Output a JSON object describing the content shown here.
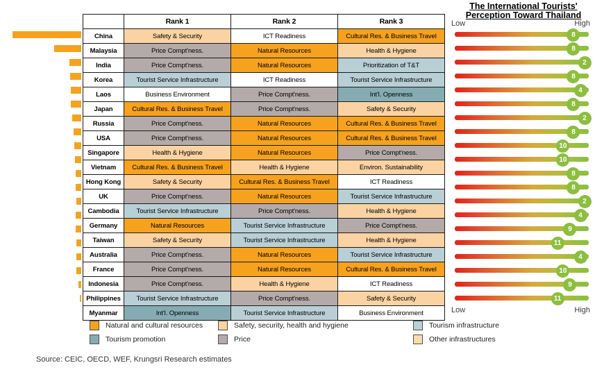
{
  "right_chart": {
    "title_line1": "The International Tourists'",
    "title_line2": "Perception Toward Thailand",
    "low_label": "Low",
    "high_label": "High"
  },
  "table": {
    "headers": [
      "Rank 1",
      "Rank 2",
      "Rank 3"
    ],
    "rows": [
      {
        "country": "China",
        "cells": [
          {
            "label": "Safety & Security",
            "cat": "safety"
          },
          {
            "label": "ICT Readiness",
            "cat": "none"
          },
          {
            "label": "Cultural Res. & Business Travel",
            "cat": "natural"
          }
        ],
        "bar_len": 99,
        "score": 8
      },
      {
        "country": "Malaysia",
        "cells": [
          {
            "label": "Price Compt'ness.",
            "cat": "price"
          },
          {
            "label": "Natural Resources",
            "cat": "natural"
          },
          {
            "label": "Health & Hygiene",
            "cat": "safety"
          }
        ],
        "bar_len": 39,
        "score": 8
      },
      {
        "country": "India",
        "cells": [
          {
            "label": "Price Compt'ness.",
            "cat": "price"
          },
          {
            "label": "Natural Resources",
            "cat": "natural"
          },
          {
            "label": "Prioritization of T&T",
            "cat": "infrastructure"
          }
        ],
        "bar_len": 17,
        "score": 2
      },
      {
        "country": "Korea",
        "cells": [
          {
            "label": "Tourist Service Infrastructure",
            "cat": "infrastructure"
          },
          {
            "label": "ICT Readiness",
            "cat": "none"
          },
          {
            "label": "Tourist Service Infrastructure",
            "cat": "infrastructure"
          }
        ],
        "bar_len": 16,
        "score": 8
      },
      {
        "country": "Laos",
        "cells": [
          {
            "label": "Business Environment",
            "cat": "none"
          },
          {
            "label": "Price Compt'ness.",
            "cat": "price"
          },
          {
            "label": "Int'l. Openness",
            "cat": "promotion"
          }
        ],
        "bar_len": 15,
        "score": 4
      },
      {
        "country": "Japan",
        "cells": [
          {
            "label": "Cultural Res. & Business Travel",
            "cat": "natural"
          },
          {
            "label": "Price Compt'ness.",
            "cat": "price"
          },
          {
            "label": "Safety & Security",
            "cat": "safety"
          }
        ],
        "bar_len": 15,
        "score": 8
      },
      {
        "country": "Russia",
        "cells": [
          {
            "label": "Price Compt'ness.",
            "cat": "price"
          },
          {
            "label": "Natural Resources",
            "cat": "natural"
          },
          {
            "label": "Cultural Res. & Business Travel",
            "cat": "natural"
          }
        ],
        "bar_len": 13,
        "score": 2
      },
      {
        "country": "USA",
        "cells": [
          {
            "label": "Price Compt'ness.",
            "cat": "price"
          },
          {
            "label": "Natural Resources",
            "cat": "natural"
          },
          {
            "label": "Cultural Res. & Business Travel",
            "cat": "natural"
          }
        ],
        "bar_len": 11,
        "score": 8
      },
      {
        "country": "Singapore",
        "cells": [
          {
            "label": "Health & Hygiene",
            "cat": "safety"
          },
          {
            "label": "Natural Resources",
            "cat": "natural"
          },
          {
            "label": "Price Compt'ness.",
            "cat": "price"
          }
        ],
        "bar_len": 10,
        "score": 10
      },
      {
        "country": "Vietnam",
        "cells": [
          {
            "label": "Cultural Res. & Business Travel",
            "cat": "natural"
          },
          {
            "label": "Health & Hygiene",
            "cat": "safety"
          },
          {
            "label": "Environ. Sustainability",
            "cat": "safety"
          }
        ],
        "bar_len": 9,
        "score": 10
      },
      {
        "country": "Hong Kong",
        "cells": [
          {
            "label": "Safety & Security",
            "cat": "safety"
          },
          {
            "label": "Cultural Res. & Business Travel",
            "cat": "natural"
          },
          {
            "label": "ICT Readiness",
            "cat": "none"
          }
        ],
        "bar_len": 8,
        "score": 8
      },
      {
        "country": "UK",
        "cells": [
          {
            "label": "Price Compt'ness.",
            "cat": "price"
          },
          {
            "label": "Natural Resources",
            "cat": "natural"
          },
          {
            "label": "Tourist Service Infrastructure",
            "cat": "infrastructure"
          }
        ],
        "bar_len": 8,
        "score": 8
      },
      {
        "country": "Cambodia",
        "cells": [
          {
            "label": "Tourist Service Infrastructure",
            "cat": "infrastructure"
          },
          {
            "label": "Price Compt'ness.",
            "cat": "price"
          },
          {
            "label": "Health & Hygiene",
            "cat": "safety"
          }
        ],
        "bar_len": 7,
        "score": 2
      },
      {
        "country": "Germany",
        "cells": [
          {
            "label": "Natural Resources",
            "cat": "natural"
          },
          {
            "label": "Tourist Service Infrastructure",
            "cat": "infrastructure"
          },
          {
            "label": "Price Compt'ness.",
            "cat": "price"
          }
        ],
        "bar_len": 8,
        "score": 4
      },
      {
        "country": "Taiwan",
        "cells": [
          {
            "label": "Safety & Security",
            "cat": "safety"
          },
          {
            "label": "Tourist Service Infrastructure",
            "cat": "infrastructure"
          },
          {
            "label": "Health & Hygiene",
            "cat": "safety"
          }
        ],
        "bar_len": 8,
        "score": 9
      },
      {
        "country": "Australia",
        "cells": [
          {
            "label": "Price Compt'ness.",
            "cat": "price"
          },
          {
            "label": "Natural Resources",
            "cat": "natural"
          },
          {
            "label": "Tourist Service Infrastructure",
            "cat": "infrastructure"
          }
        ],
        "bar_len": 7,
        "score": 11
      },
      {
        "country": "France",
        "cells": [
          {
            "label": "Price Compt'ness.",
            "cat": "price"
          },
          {
            "label": "Natural Resources",
            "cat": "natural"
          },
          {
            "label": "Cultural Res. & Business Travel",
            "cat": "natural"
          }
        ],
        "bar_len": 7,
        "score": 4
      },
      {
        "country": "Indonesia",
        "cells": [
          {
            "label": "Price Compt'ness.",
            "cat": "price"
          },
          {
            "label": "Health & Hygiene",
            "cat": "safety"
          },
          {
            "label": "ICT Readiness",
            "cat": "none"
          }
        ],
        "bar_len": 7,
        "score": 10
      },
      {
        "country": "Philippines",
        "cells": [
          {
            "label": "Tourist Service Infrastructure",
            "cat": "infrastructure"
          },
          {
            "label": "Price Compt'ness.",
            "cat": "price"
          },
          {
            "label": "Safety & Security",
            "cat": "safety"
          }
        ],
        "bar_len": 4,
        "score": 9
      },
      {
        "country": "Myanmar",
        "cells": [
          {
            "label": "Int'l. Openness",
            "cat": "promotion"
          },
          {
            "label": "Tourist Service Infrastructure",
            "cat": "infrastructure"
          },
          {
            "label": "Business Environment",
            "cat": "none"
          }
        ],
        "bar_len": 2,
        "score": 11
      }
    ]
  },
  "score_positions": {
    "2": 0.969,
    "4": 0.938,
    "8": 0.886,
    "9": 0.86,
    "10": 0.808,
    "11": 0.767
  },
  "colors": {
    "natural": "#F6A21E",
    "safety": "#FBD3A2",
    "price": "#B4AAAA",
    "infrastructure": "#B9CFD6",
    "promotion": "#85ACB3",
    "other": "#F8DCAE",
    "none": "#FFFFFF",
    "left_bar": "#F6A21E",
    "circle": "#8CBE3F",
    "gradient_start": "#E2231A",
    "gradient_mid": "#D6A93C",
    "gradient_end": "#8CBE3F"
  },
  "legend": [
    {
      "label": "Natural and cultural resources",
      "cat": "natural"
    },
    {
      "label": "Safety, security, health and hygiene",
      "cat": "safety"
    },
    {
      "label": "Tourism infrastructure",
      "cat": "infrastructure"
    },
    {
      "label": "Tourism promotion",
      "cat": "promotion"
    },
    {
      "label": "Price",
      "cat": "price"
    },
    {
      "label": "Other infrastructures",
      "cat": "other"
    }
  ],
  "source": "Source: CEIC, OECD, WEF, Krungsri Research estimates",
  "chart_data": [
    {
      "type": "bar",
      "orientation": "horizontal",
      "title": "",
      "categories": [
        "China",
        "Malaysia",
        "India",
        "Korea",
        "Laos",
        "Japan",
        "Russia",
        "USA",
        "Singapore",
        "Vietnam",
        "Hong Kong",
        "UK",
        "Cambodia",
        "Germany",
        "Taiwan",
        "Australia",
        "France",
        "Indonesia",
        "Philippines",
        "Myanmar"
      ],
      "values": [
        99,
        39,
        17,
        16,
        15,
        15,
        13,
        11,
        10,
        9,
        8,
        8,
        7,
        8,
        8,
        7,
        7,
        7,
        4,
        2
      ],
      "value_unit": "relative_bar_length_px",
      "bar_color": "#F6A21E",
      "legend_position": "none"
    },
    {
      "type": "scatter",
      "title": "The International Tourists' Perception Toward Thailand",
      "categories": [
        "China",
        "Malaysia",
        "India",
        "Korea",
        "Laos",
        "Japan",
        "Russia",
        "USA",
        "Singapore",
        "Vietnam",
        "Hong Kong",
        "UK",
        "Cambodia",
        "Germany",
        "Taiwan",
        "Australia",
        "France",
        "Indonesia",
        "Philippines",
        "Myanmar"
      ],
      "values": [
        8,
        8,
        2,
        8,
        4,
        8,
        2,
        8,
        10,
        10,
        8,
        8,
        2,
        4,
        9,
        11,
        4,
        10,
        9,
        11
      ],
      "xlabel": "Low to High perception scale (red-to-green gradient bullet per country, green circle shows value)",
      "x_min_label": "Low",
      "x_max_label": "High"
    },
    {
      "type": "table",
      "columns": [
        "",
        "Rank 1",
        "Rank 2",
        "Rank 3"
      ],
      "rows": [
        [
          "China",
          "Safety & Security",
          "ICT Readiness",
          "Cultural Res. & Business Travel"
        ],
        [
          "Malaysia",
          "Price Compt'ness.",
          "Natural Resources",
          "Health & Hygiene"
        ],
        [
          "India",
          "Price Compt'ness.",
          "Natural Resources",
          "Prioritization of T&T"
        ],
        [
          "Korea",
          "Tourist Service Infrastructure",
          "ICT Readiness",
          "Tourist Service Infrastructure"
        ],
        [
          "Laos",
          "Business Environment",
          "Price Compt'ness.",
          "Int'l. Openness"
        ],
        [
          "Japan",
          "Cultural Res. & Business Travel",
          "Price Compt'ness.",
          "Safety & Security"
        ],
        [
          "Russia",
          "Price Compt'ness.",
          "Natural Resources",
          "Cultural Res. & Business Travel"
        ],
        [
          "USA",
          "Price Compt'ness.",
          "Natural Resources",
          "Cultural Res. & Business Travel"
        ],
        [
          "Singapore",
          "Health & Hygiene",
          "Natural Resources",
          "Price Compt'ness."
        ],
        [
          "Vietnam",
          "Cultural Res. & Business Travel",
          "Health & Hygiene",
          "Environ. Sustainability"
        ],
        [
          "Hong Kong",
          "Safety & Security",
          "Cultural Res. & Business Travel",
          "ICT Readiness"
        ],
        [
          "UK",
          "Price Compt'ness.",
          "Natural Resources",
          "Tourist Service Infrastructure"
        ],
        [
          "Cambodia",
          "Tourist Service Infrastructure",
          "Price Compt'ness.",
          "Health & Hygiene"
        ],
        [
          "Germany",
          "Natural Resources",
          "Tourist Service Infrastructure",
          "Price Compt'ness."
        ],
        [
          "Taiwan",
          "Safety & Security",
          "Tourist Service Infrastructure",
          "Health & Hygiene"
        ],
        [
          "Australia",
          "Price Compt'ness.",
          "Natural Resources",
          "Tourist Service Infrastructure"
        ],
        [
          "France",
          "Price Compt'ness.",
          "Natural Resources",
          "Cultural Res. & Business Travel"
        ],
        [
          "Indonesia",
          "Price Compt'ness.",
          "Health & Hygiene",
          "ICT Readiness"
        ],
        [
          "Philippines",
          "Tourist Service Infrastructure",
          "Price Compt'ness.",
          "Safety & Security"
        ],
        [
          "Myanmar",
          "Int'l. Openness",
          "Tourist Service Infrastructure",
          "Business Environment"
        ]
      ]
    }
  ]
}
